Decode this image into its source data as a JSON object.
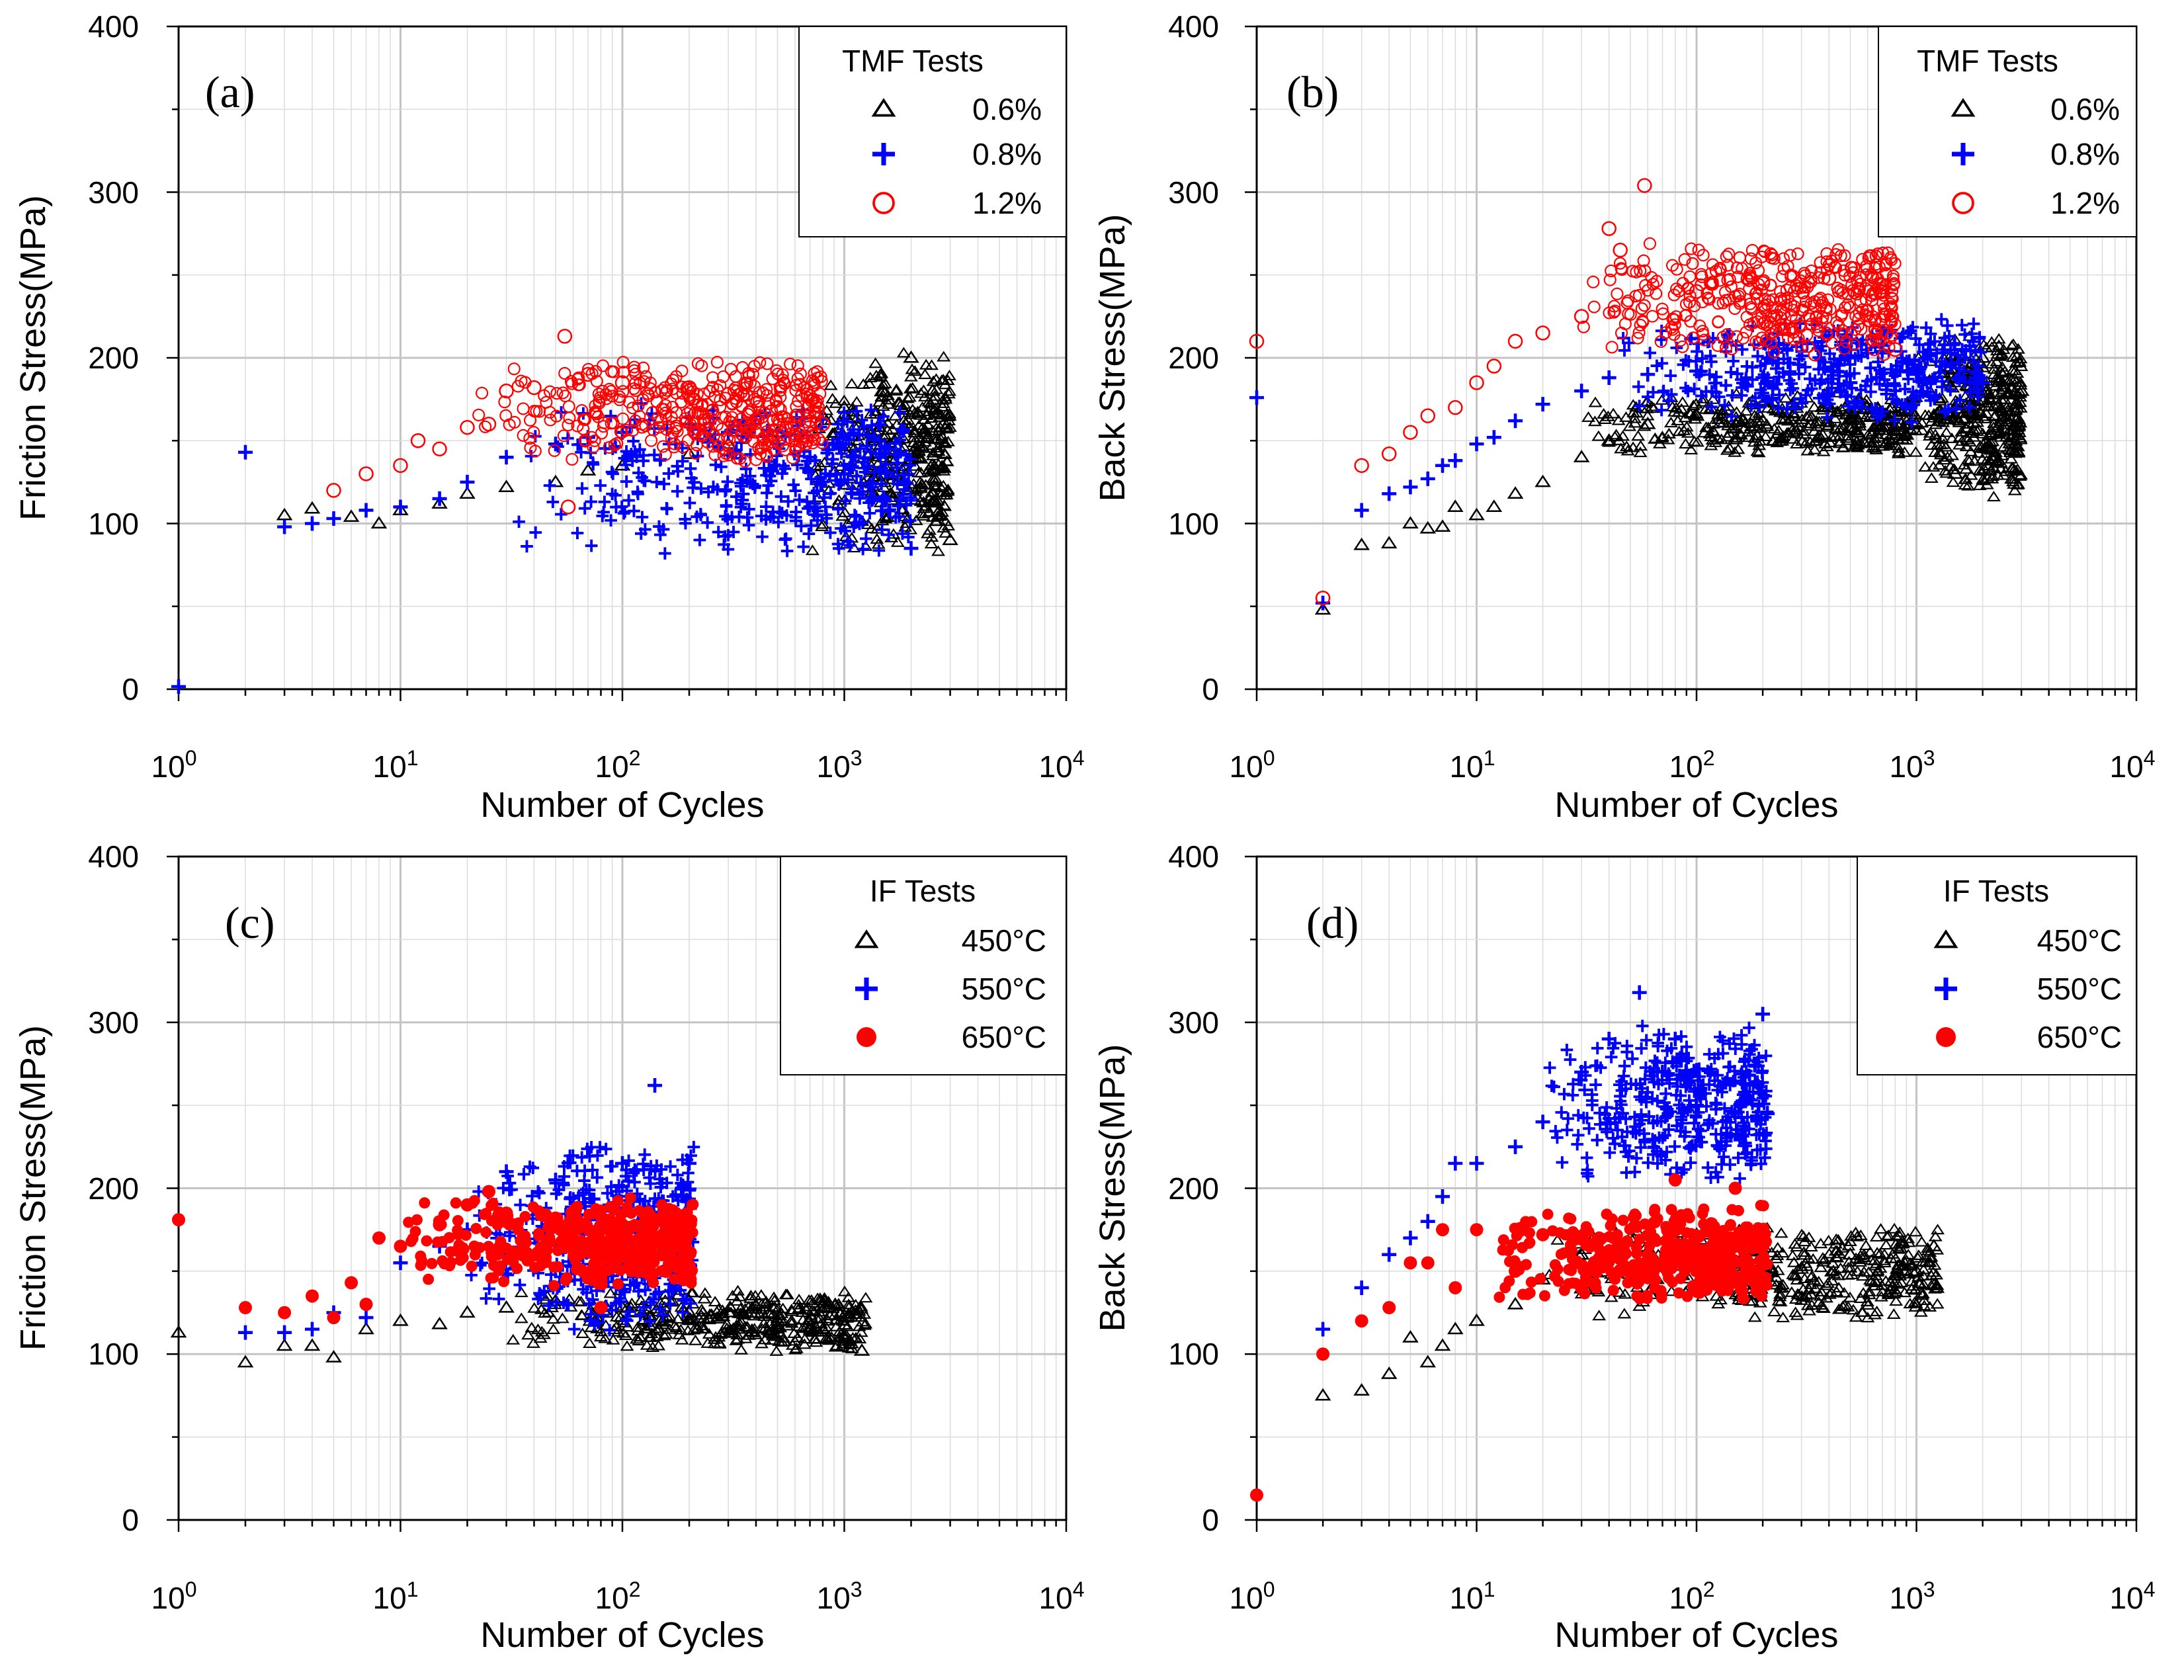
{
  "figure": {
    "x_tick_base": "10",
    "x_tick_exponents": [
      "0",
      "1",
      "2",
      "3",
      "4"
    ]
  },
  "chart_data": [
    {
      "id": "a",
      "type": "scatter",
      "panel_label": "(a)",
      "xlabel": "Number of Cycles",
      "ylabel": "Friction Stress(MPa)",
      "xscale": "log",
      "xlim": [
        1,
        10000
      ],
      "ylim": [
        0,
        400
      ],
      "y_ticks": [
        "0",
        "100",
        "200",
        "300",
        "400"
      ],
      "grid": true,
      "legend_title": "TMF Tests",
      "legend_position": "top-right",
      "series": [
        {
          "name": "0.6%",
          "marker": "triangle-open",
          "color": "#000000",
          "points": [
            [
              3,
              105
            ],
            [
              4,
              109
            ],
            [
              6,
              104
            ],
            [
              8,
              100
            ],
            [
              10,
              108
            ],
            [
              15,
              112
            ],
            [
              20,
              118
            ],
            [
              30,
              122
            ],
            [
              50,
              125
            ],
            [
              70,
              132
            ],
            [
              100,
              135
            ],
            [
              200,
              142
            ],
            [
              300,
              148
            ],
            [
              500,
              155
            ],
            [
              800,
              165
            ],
            [
              1000,
              170
            ],
            [
              1500,
              180
            ],
            [
              2000,
              200
            ],
            [
              2500,
              180
            ],
            [
              3000,
              90
            ]
          ],
          "scatter_fill": [
            [
              700,
              3000,
              80,
              205
            ]
          ]
        },
        {
          "name": "0.8%",
          "marker": "plus",
          "color": "#0000ff",
          "points": [
            [
              1,
              0
            ],
            [
              2,
              143
            ],
            [
              3,
              98
            ],
            [
              4,
              100
            ],
            [
              5,
              103
            ],
            [
              7,
              108
            ],
            [
              10,
              110
            ],
            [
              15,
              115
            ],
            [
              20,
              125
            ],
            [
              30,
              140
            ],
            [
              50,
              148
            ],
            [
              70,
              152
            ],
            [
              100,
              155
            ],
            [
              200,
              160
            ],
            [
              300,
              155
            ],
            [
              500,
              148
            ],
            [
              700,
              140
            ],
            [
              1000,
              130
            ],
            [
              1500,
              115
            ],
            [
              2000,
              85
            ]
          ],
          "scatter_fill": [
            [
              30,
              2000,
              80,
              175
            ]
          ]
        },
        {
          "name": "1.2%",
          "marker": "circle-open",
          "color": "#ff0000",
          "points": [
            [
              5,
              120
            ],
            [
              7,
              130
            ],
            [
              10,
              135
            ],
            [
              12,
              150
            ],
            [
              15,
              145
            ],
            [
              20,
              158
            ],
            [
              25,
              160
            ],
            [
              30,
              180
            ],
            [
              40,
              182
            ],
            [
              55,
              213
            ],
            [
              57,
              110
            ],
            [
              70,
              190
            ],
            [
              100,
              185
            ],
            [
              200,
              182
            ],
            [
              300,
              178
            ],
            [
              500,
              170
            ],
            [
              800,
              160
            ]
          ],
          "scatter_fill": [
            [
              20,
              800,
              135,
              200
            ]
          ]
        }
      ]
    },
    {
      "id": "b",
      "type": "scatter",
      "panel_label": "(b)",
      "xlabel": "Number of Cycles",
      "ylabel": "Back Stress(MPa)",
      "xscale": "log",
      "xlim": [
        1,
        10000
      ],
      "ylim": [
        0,
        400
      ],
      "y_ticks": [
        "0",
        "100",
        "200",
        "300",
        "400"
      ],
      "grid": true,
      "legend_title": "TMF Tests",
      "legend_position": "top-right",
      "series": [
        {
          "name": "0.6%",
          "marker": "triangle-open",
          "color": "#000000",
          "points": [
            [
              2,
              48
            ],
            [
              3,
              87
            ],
            [
              4,
              88
            ],
            [
              5,
              100
            ],
            [
              6,
              97
            ],
            [
              7,
              98
            ],
            [
              8,
              110
            ],
            [
              10,
              105
            ],
            [
              12,
              110
            ],
            [
              15,
              118
            ],
            [
              20,
              125
            ],
            [
              30,
              140
            ],
            [
              40,
              150
            ],
            [
              60,
              160
            ],
            [
              100,
              165
            ],
            [
              200,
              162
            ],
            [
              500,
              158
            ],
            [
              1000,
              160
            ],
            [
              1500,
              130
            ],
            [
              2000,
              200
            ],
            [
              3000,
              180
            ]
          ],
          "scatter_fill": [
            [
              30,
              1000,
              140,
              180
            ],
            [
              1000,
              3000,
              115,
              215
            ]
          ]
        },
        {
          "name": "0.8%",
          "marker": "plus",
          "color": "#0000ff",
          "points": [
            [
              1,
              176
            ],
            [
              2,
              52
            ],
            [
              3,
              108
            ],
            [
              4,
              118
            ],
            [
              5,
              122
            ],
            [
              6,
              127
            ],
            [
              7,
              135
            ],
            [
              8,
              138
            ],
            [
              10,
              148
            ],
            [
              12,
              152
            ],
            [
              15,
              162
            ],
            [
              20,
              172
            ],
            [
              30,
              180
            ],
            [
              40,
              188
            ],
            [
              60,
              190
            ],
            [
              100,
              192
            ],
            [
              200,
              188
            ],
            [
              500,
              185
            ],
            [
              1000,
              190
            ],
            [
              2000,
              185
            ]
          ],
          "scatter_fill": [
            [
              40,
              2000,
              160,
              225
            ]
          ]
        },
        {
          "name": "1.2%",
          "marker": "circle-open",
          "color": "#ff0000",
          "points": [
            [
              1,
              210
            ],
            [
              2,
              55
            ],
            [
              3,
              135
            ],
            [
              4,
              142
            ],
            [
              5,
              155
            ],
            [
              6,
              165
            ],
            [
              8,
              170
            ],
            [
              10,
              185
            ],
            [
              12,
              195
            ],
            [
              15,
              210
            ],
            [
              20,
              215
            ],
            [
              30,
              225
            ],
            [
              40,
              278
            ],
            [
              45,
              265
            ],
            [
              58,
              304
            ],
            [
              100,
              240
            ],
            [
              200,
              245
            ],
            [
              400,
              248
            ],
            [
              700,
              240
            ],
            [
              800,
              205
            ]
          ],
          "scatter_fill": [
            [
              30,
              800,
              200,
              270
            ]
          ]
        }
      ]
    },
    {
      "id": "c",
      "type": "scatter",
      "panel_label": "(c)",
      "xlabel": "Number of Cycles",
      "ylabel": "Friction Stress(MPa)",
      "xscale": "log",
      "xlim": [
        1,
        10000
      ],
      "ylim": [
        0,
        400
      ],
      "y_ticks": [
        "0",
        "100",
        "200",
        "300",
        "400"
      ],
      "grid": true,
      "legend_title": "IF Tests",
      "legend_position": "top-right",
      "series": [
        {
          "name": "450°C",
          "marker": "triangle-open",
          "color": "#000000",
          "points": [
            [
              1,
              113
            ],
            [
              2,
              95
            ],
            [
              3,
              105
            ],
            [
              4,
              105
            ],
            [
              5,
              98
            ],
            [
              7,
              115
            ],
            [
              10,
              120
            ],
            [
              15,
              118
            ],
            [
              20,
              125
            ],
            [
              30,
              128
            ],
            [
              50,
              132
            ],
            [
              100,
              128
            ],
            [
              200,
              125
            ],
            [
              500,
              120
            ],
            [
              800,
              115
            ],
            [
              1000,
              110
            ],
            [
              1200,
              102
            ]
          ],
          "scatter_fill": [
            [
              30,
              1250,
              100,
              140
            ]
          ]
        },
        {
          "name": "550°C",
          "marker": "plus",
          "color": "#0000ff",
          "points": [
            [
              2,
              113
            ],
            [
              3,
              113
            ],
            [
              4,
              115
            ],
            [
              5,
              125
            ],
            [
              7,
              122
            ],
            [
              10,
              155
            ],
            [
              15,
              165
            ],
            [
              20,
              175
            ],
            [
              30,
              210
            ],
            [
              50,
              205
            ],
            [
              100,
              215
            ],
            [
              140,
              262
            ],
            [
              200,
              215
            ]
          ],
          "scatter_fill": [
            [
              20,
              210,
              110,
              232
            ]
          ]
        },
        {
          "name": "650°C",
          "marker": "circle-filled",
          "color": "#ff0000",
          "points": [
            [
              1,
              181
            ],
            [
              2,
              128
            ],
            [
              3,
              125
            ],
            [
              4,
              135
            ],
            [
              5,
              122
            ],
            [
              6,
              143
            ],
            [
              7,
              130
            ],
            [
              8,
              170
            ],
            [
              10,
              165
            ],
            [
              15,
              178
            ],
            [
              20,
              190
            ],
            [
              25,
              198
            ],
            [
              30,
              185
            ],
            [
              50,
              182
            ],
            [
              80,
              128
            ],
            [
              100,
              178
            ],
            [
              200,
              175
            ]
          ],
          "scatter_fill": [
            [
              10,
              210,
              140,
              195
            ]
          ]
        }
      ]
    },
    {
      "id": "d",
      "type": "scatter",
      "panel_label": "(d)",
      "xlabel": "Number of Cycles",
      "ylabel": "Back Stress(MPa)",
      "xscale": "log",
      "xlim": [
        1,
        10000
      ],
      "ylim": [
        0,
        400
      ],
      "y_ticks": [
        "0",
        "100",
        "200",
        "300",
        "400"
      ],
      "grid": true,
      "legend_title": "IF Tests",
      "legend_position": "top-right",
      "series": [
        {
          "name": "450°C",
          "marker": "triangle-open",
          "color": "#000000",
          "points": [
            [
              2,
              75
            ],
            [
              3,
              78
            ],
            [
              4,
              88
            ],
            [
              5,
              110
            ],
            [
              6,
              95
            ],
            [
              7,
              105
            ],
            [
              8,
              115
            ],
            [
              10,
              120
            ],
            [
              15,
              130
            ],
            [
              20,
              145
            ],
            [
              30,
              160
            ],
            [
              50,
              170
            ],
            [
              100,
              172
            ],
            [
              200,
              168
            ],
            [
              500,
              160
            ],
            [
              1000,
              150
            ],
            [
              1200,
              165
            ]
          ],
          "scatter_fill": [
            [
              20,
              1250,
              120,
              180
            ]
          ]
        },
        {
          "name": "550°C",
          "marker": "plus",
          "color": "#0000ff",
          "points": [
            [
              2,
              115
            ],
            [
              3,
              140
            ],
            [
              4,
              160
            ],
            [
              5,
              170
            ],
            [
              6,
              180
            ],
            [
              7,
              195
            ],
            [
              8,
              215
            ],
            [
              10,
              215
            ],
            [
              15,
              225
            ],
            [
              20,
              240
            ],
            [
              30,
              270
            ],
            [
              40,
              290
            ],
            [
              55,
              318
            ],
            [
              80,
              290
            ],
            [
              100,
              250
            ],
            [
              200,
              305
            ],
            [
              210,
              245
            ]
          ],
          "scatter_fill": [
            [
              20,
              210,
              200,
              300
            ]
          ]
        },
        {
          "name": "650°C",
          "marker": "circle-filled",
          "color": "#ff0000",
          "points": [
            [
              1,
              15
            ],
            [
              2,
              100
            ],
            [
              3,
              120
            ],
            [
              4,
              128
            ],
            [
              5,
              155
            ],
            [
              6,
              155
            ],
            [
              7,
              175
            ],
            [
              8,
              140
            ],
            [
              10,
              175
            ],
            [
              15,
              150
            ],
            [
              20,
              172
            ],
            [
              30,
              140
            ],
            [
              50,
              150
            ],
            [
              80,
              205
            ],
            [
              100,
              160
            ],
            [
              150,
              200
            ],
            [
              200,
              165
            ]
          ],
          "scatter_fill": [
            [
              10,
              210,
              130,
              190
            ]
          ]
        }
      ]
    }
  ]
}
